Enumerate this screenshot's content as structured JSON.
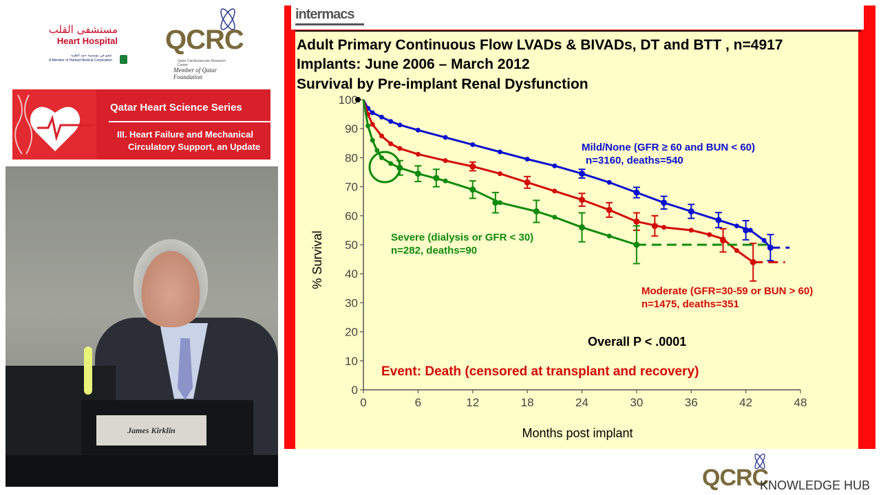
{
  "logos": {
    "heart_hospital": {
      "arabic": "مستشفى القلب",
      "english": "Heart Hospital",
      "sub_arabic": "عضو في مؤسسة حمد الطبية",
      "sub_english": "A Member of Hamad Medical Corporation"
    },
    "qcrc": {
      "word": "QCRC",
      "sub": "Qatar Cardiovascular Research Center",
      "member": "Member of Qatar Foundation"
    }
  },
  "series_banner": {
    "title": "Qatar Heart Science Series",
    "subtitle_line1": "III. Heart Failure and Mechanical",
    "subtitle_line2": "Circulatory Support, an Update"
  },
  "video": {
    "nameplate": "James Kirklin"
  },
  "slide": {
    "brand": "intermacs",
    "title_lines": [
      "Adult Primary Continuous Flow LVADs & BIVADs, DT and BTT , n=4917",
      "Implants:  June 2006 – March 2012",
      "Survival by Pre-implant Renal Dysfunction"
    ]
  },
  "chart_data": {
    "type": "line",
    "title": "Survival by Pre-implant Renal Dysfunction",
    "xlabel": "Months post implant",
    "ylabel": "% Survival",
    "xlim": [
      0,
      48
    ],
    "ylim": [
      0,
      100
    ],
    "xticks": [
      0,
      6,
      12,
      18,
      24,
      30,
      36,
      42,
      48
    ],
    "yticks": [
      0,
      10,
      20,
      30,
      40,
      50,
      60,
      70,
      80,
      90,
      100
    ],
    "grid": false,
    "series": [
      {
        "name": "Mild/None (GFR ≥ 60 and BUN < 60)",
        "detail": "n=3160, deaths=540",
        "color": "#0a10d0",
        "points": [
          [
            0,
            100
          ],
          [
            0.5,
            97
          ],
          [
            1,
            95.5
          ],
          [
            2,
            94
          ],
          [
            3,
            92.5
          ],
          [
            4,
            91.3
          ],
          [
            6,
            89.5
          ],
          [
            9,
            87
          ],
          [
            12,
            84.5
          ],
          [
            15,
            82
          ],
          [
            18,
            79.5
          ],
          [
            21,
            77.2
          ],
          [
            24,
            74.5
          ],
          [
            27,
            71.5
          ],
          [
            30,
            68
          ],
          [
            33,
            64.5
          ],
          [
            36,
            61.5
          ],
          [
            39,
            58.5
          ],
          [
            41,
            56.5
          ],
          [
            42.5,
            55
          ],
          [
            44,
            51.5
          ],
          [
            44.7,
            49
          ]
        ],
        "error_bars": [
          [
            24,
            74.5,
            1.5
          ],
          [
            30,
            68,
            1.8
          ],
          [
            33,
            64.5,
            2.2
          ],
          [
            36,
            61.5,
            2.4
          ],
          [
            39,
            58.5,
            2.6
          ],
          [
            42,
            55,
            3.3
          ],
          [
            44.7,
            49,
            4.5
          ]
        ],
        "extension": [
          [
            44.7,
            49
          ],
          [
            46.8,
            49
          ]
        ]
      },
      {
        "name": "Moderate (GFR=30-59 or BUN > 60)",
        "detail": "n=1475, deaths=351",
        "color": "#d20a0a",
        "points": [
          [
            0,
            100
          ],
          [
            0.5,
            95
          ],
          [
            1,
            91.5
          ],
          [
            2,
            87.5
          ],
          [
            3,
            84.8
          ],
          [
            4,
            83.2
          ],
          [
            6,
            81.2
          ],
          [
            9,
            79
          ],
          [
            12,
            77
          ],
          [
            15,
            74.5
          ],
          [
            18,
            71.5
          ],
          [
            21,
            68.5
          ],
          [
            24,
            65.5
          ],
          [
            27,
            62
          ],
          [
            30,
            58
          ],
          [
            33,
            56
          ],
          [
            36,
            55
          ],
          [
            38,
            53.5
          ],
          [
            39.5,
            52
          ],
          [
            41,
            48
          ],
          [
            42.8,
            44
          ]
        ],
        "error_bars": [
          [
            12,
            77,
            1.5
          ],
          [
            18,
            71.5,
            2
          ],
          [
            24,
            65.5,
            2.2
          ],
          [
            27,
            62,
            2.5
          ],
          [
            30,
            58,
            3
          ],
          [
            32,
            56.5,
            3.5
          ],
          [
            39.5,
            51.5,
            4
          ],
          [
            42.8,
            44,
            6.5
          ]
        ],
        "extension": [
          [
            42.8,
            44
          ],
          [
            46.3,
            44
          ]
        ]
      },
      {
        "name": "Severe (dialysis or GFR < 30)",
        "detail": "n=282, deaths=90",
        "color": "#108a10",
        "points": [
          [
            0,
            100
          ],
          [
            0.5,
            91
          ],
          [
            1,
            86
          ],
          [
            1.5,
            82.5
          ],
          [
            2,
            80
          ],
          [
            3,
            78
          ],
          [
            4,
            76.5
          ],
          [
            6,
            74.5
          ],
          [
            9,
            72
          ],
          [
            12,
            69
          ],
          [
            15,
            64.5
          ],
          [
            19,
            61.5
          ],
          [
            21,
            59.5
          ],
          [
            24,
            56
          ],
          [
            27,
            53
          ],
          [
            30,
            50
          ]
        ],
        "error_bars": [
          [
            4,
            76.5,
            2.5
          ],
          [
            6,
            74.5,
            2.7
          ],
          [
            8,
            73,
            3
          ],
          [
            12,
            69,
            3
          ],
          [
            14.5,
            64.5,
            3.5
          ],
          [
            19,
            61.5,
            3.8
          ],
          [
            24,
            56,
            5
          ],
          [
            30,
            50,
            6.5
          ]
        ],
        "extension": [
          [
            30,
            50
          ],
          [
            44.3,
            50
          ]
        ]
      }
    ],
    "annotations": {
      "p_value": "Overall P < .0001",
      "event": "Event:  Death (censored at transplant and recovery)"
    }
  },
  "footer": {
    "qcrc": "QCRC",
    "hub": "KNOWLEDGE HUB"
  }
}
